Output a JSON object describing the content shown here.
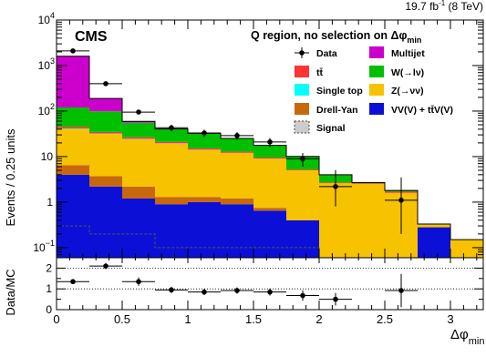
{
  "chart_data": {
    "type": "bar",
    "stacked": true,
    "title": "Q region, no selection on Δφ",
    "title_subscript": "min",
    "experiment": "CMS",
    "lumi_label": "19.7 fb",
    "lumi_sup": "-1",
    "lumi_tail": " (8 TeV)",
    "xlabel": "Δφ",
    "xlabel_subscript": "min",
    "ylabel": "Events / 0.25 units",
    "ratio_ylabel": "Data/MC",
    "y_scale": "log",
    "ylim": [
      0.06,
      10000
    ],
    "ratio_ylim": [
      0,
      2.5
    ],
    "grid": false,
    "legend_position": "top-right",
    "bin_edges": [
      0,
      0.25,
      0.5,
      0.75,
      1.0,
      1.25,
      1.5,
      1.75,
      2.0,
      2.25,
      2.5,
      2.75,
      3.0,
      3.25
    ],
    "x_ticks": [
      {
        "v": 0,
        "label": "0"
      },
      {
        "v": 0.5,
        "label": "0.5"
      },
      {
        "v": 1,
        "label": "1"
      },
      {
        "v": 1.5,
        "label": "1.5"
      },
      {
        "v": 2,
        "label": "2"
      },
      {
        "v": 2.5,
        "label": "2.5"
      },
      {
        "v": 3,
        "label": "3"
      }
    ],
    "y_ticks": [
      {
        "v": 0.1,
        "base": "10",
        "exp": "−1"
      },
      {
        "v": 1,
        "base": "1",
        "exp": ""
      },
      {
        "v": 10,
        "base": "10",
        "exp": ""
      },
      {
        "v": 100,
        "base": "10",
        "exp": "2"
      },
      {
        "v": 1000,
        "base": "10",
        "exp": "3"
      },
      {
        "v": 10000,
        "base": "10",
        "exp": "4"
      }
    ],
    "ratio_ticks": [
      0,
      1,
      2
    ],
    "series": [
      {
        "name": "VV(V) + tt̄V(V)",
        "color": "#0c10d6",
        "values": [
          4,
          2.2,
          1.2,
          0.9,
          1.0,
          0.9,
          0.65,
          0.4,
          0,
          0,
          0,
          0.28,
          0
        ]
      },
      {
        "name": "Drell-Yan",
        "color": "#c8680c",
        "values": [
          2.5,
          1.5,
          1.0,
          0.4,
          0.3,
          0.3,
          0.1,
          0,
          0,
          0,
          0,
          0,
          0
        ]
      },
      {
        "name": "Z(→νν)",
        "color": "#f7c300",
        "values": [
          34,
          28,
          22,
          18,
          12.7,
          10.8,
          8.25,
          4.6,
          2.6,
          2.5,
          1.6,
          0.05,
          0.15
        ]
      },
      {
        "name": "Single top",
        "color": "#00ffff",
        "values": [
          1.0,
          0.6,
          0.4,
          0.3,
          0.2,
          0.1,
          0.05,
          0,
          0,
          0,
          0,
          0,
          0
        ]
      },
      {
        "name": "tt̄",
        "color": "#ff3333",
        "values": [
          3.5,
          2.5,
          2,
          1.5,
          1,
          0.7,
          0.5,
          0.2,
          0.1,
          0.1,
          0.1,
          0,
          0
        ]
      },
      {
        "name": "W(→lν)",
        "color": "#00c000",
        "values": [
          75,
          64,
          29,
          19,
          17,
          12,
          8,
          4.8,
          1.3,
          0.1,
          0.1,
          0,
          0
        ]
      },
      {
        "name": "Multijet",
        "color": "#cc00cc",
        "values": [
          1480,
          90,
          4,
          0.5,
          0.3,
          0.2,
          0.1,
          0.1,
          0,
          0,
          0,
          0,
          0
        ]
      }
    ],
    "signal": {
      "name": "Signal",
      "values": [
        0.3,
        0.2,
        0.2,
        0.1,
        0.1,
        0.1,
        0.1,
        0.1,
        0.05,
        0.05,
        0.05,
        0.02,
        0.02
      ]
    },
    "data": {
      "name": "Data",
      "x": [
        0.125,
        0.375,
        0.625,
        0.875,
        1.125,
        1.375,
        1.625,
        1.875,
        2.125,
        2.625
      ],
      "y": [
        2100,
        400,
        95,
        43,
        33,
        29,
        21,
        9,
        2.2,
        1.1
      ],
      "yerr_low": [
        50,
        20,
        10,
        7,
        6,
        5.5,
        4.6,
        3,
        1.4,
        0.9
      ],
      "yerr_high": [
        50,
        20,
        10,
        7,
        6,
        5.5,
        4.6,
        3,
        2.9,
        2.4
      ]
    },
    "ratio": {
      "x": [
        0.125,
        0.375,
        0.625,
        0.875,
        1.125,
        1.375,
        1.625,
        1.875,
        2.125,
        2.625
      ],
      "y": [
        1.35,
        2.1,
        1.35,
        0.95,
        0.85,
        0.92,
        0.85,
        0.68,
        0.5,
        0.92
      ],
      "yerr": [
        0.05,
        0.15,
        0.2,
        0.15,
        0.15,
        0.15,
        0.17,
        0.25,
        0.3,
        0.8
      ]
    },
    "legend": [
      {
        "name": "Data",
        "kind": "marker",
        "color": "#000000",
        "col": 0,
        "row": 0
      },
      {
        "name": "Multijet",
        "kind": "box",
        "color": "#cc00cc",
        "col": 1,
        "row": 0
      },
      {
        "name": "tt̄",
        "kind": "box",
        "color": "#ff3333",
        "col": 0,
        "row": 1
      },
      {
        "name": "W(→lν)",
        "kind": "box",
        "color": "#00c000",
        "col": 1,
        "row": 1
      },
      {
        "name": "Single top",
        "kind": "box",
        "color": "#00ffff",
        "col": 0,
        "row": 2
      },
      {
        "name": "Z(→νν)",
        "kind": "box",
        "color": "#f7c300",
        "col": 1,
        "row": 2
      },
      {
        "name": "Drell-Yan",
        "kind": "box",
        "color": "#c8680c",
        "col": 0,
        "row": 3
      },
      {
        "name": "VV(V) + tt̄V(V)",
        "kind": "box",
        "color": "#0c10d6",
        "col": 1,
        "row": 3
      },
      {
        "name": "Signal",
        "kind": "dashed",
        "color": "#cccccc",
        "col": 0,
        "row": 4
      }
    ]
  }
}
